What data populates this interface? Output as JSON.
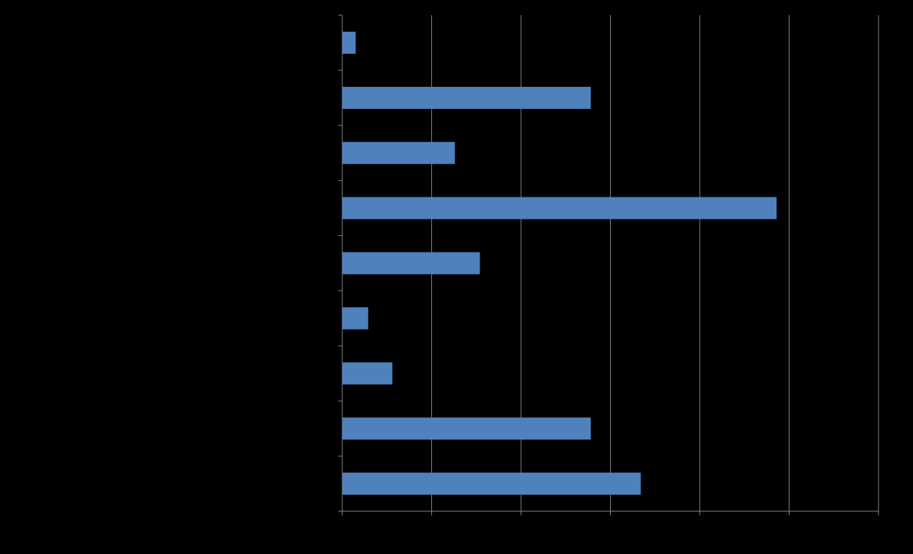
{
  "chart_data": {
    "type": "bar",
    "orientation": "horizontal",
    "categories": [
      null,
      null,
      null,
      null,
      null,
      null,
      null,
      null,
      null
    ],
    "values": [
      1.5,
      27.8,
      12.6,
      48.6,
      15.4,
      2.9,
      5.6,
      27.8,
      33.4
    ],
    "color": "#4f81bd",
    "xlim": [
      0,
      60
    ],
    "xticks": [
      0,
      10,
      20,
      30,
      40,
      50,
      60
    ],
    "grid": true
  }
}
